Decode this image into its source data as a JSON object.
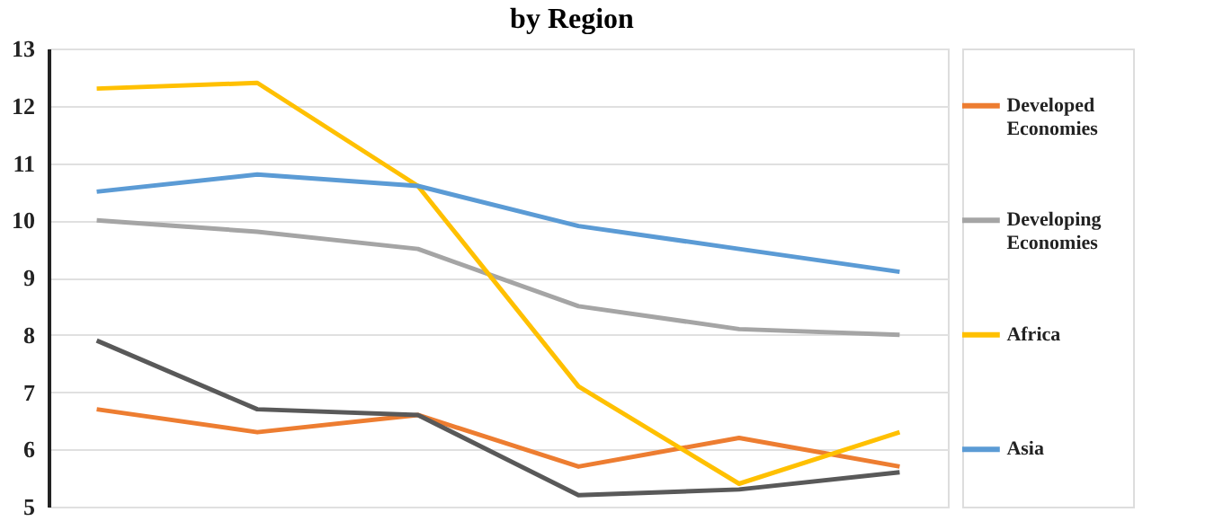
{
  "chart_data": {
    "type": "line",
    "title": "by Region",
    "categories": [
      null,
      null,
      null,
      null,
      null,
      null
    ],
    "series": [
      {
        "name": "Developed Economies",
        "color": "#ed7d31",
        "values": [
          6.7,
          6.3,
          6.6,
          5.7,
          6.2,
          5.7
        ]
      },
      {
        "name": "Developing Economies",
        "color": "#a5a5a5",
        "values": [
          10.0,
          9.8,
          9.5,
          8.5,
          8.1,
          8.0
        ]
      },
      {
        "name": "Africa",
        "color": "#ffc000",
        "values": [
          12.3,
          12.4,
          10.6,
          7.1,
          5.4,
          6.3
        ]
      },
      {
        "name": "Asia",
        "color": "#5b9bd5",
        "values": [
          10.5,
          10.8,
          10.6,
          9.9,
          9.5,
          9.1
        ]
      },
      {
        "color": "#595959",
        "values": [
          7.9,
          6.7,
          6.6,
          5.2,
          5.3,
          5.6
        ]
      }
    ],
    "ylim": [
      5,
      13
    ],
    "yticks": [
      5,
      6,
      7,
      8,
      9,
      10,
      11,
      12,
      13
    ],
    "grid": "y",
    "legend": "right",
    "tick_labels": "y",
    "marker": "none",
    "line_style": "solid"
  }
}
